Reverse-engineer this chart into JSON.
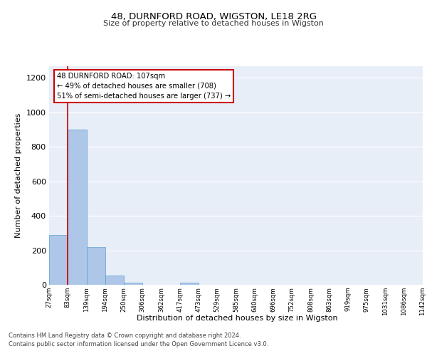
{
  "title1": "48, DURNFORD ROAD, WIGSTON, LE18 2RG",
  "title2": "Size of property relative to detached houses in Wigston",
  "xlabel": "Distribution of detached houses by size in Wigston",
  "ylabel": "Number of detached properties",
  "bin_labels": [
    "27sqm",
    "83sqm",
    "139sqm",
    "194sqm",
    "250sqm",
    "306sqm",
    "362sqm",
    "417sqm",
    "473sqm",
    "529sqm",
    "585sqm",
    "640sqm",
    "696sqm",
    "752sqm",
    "808sqm",
    "863sqm",
    "919sqm",
    "975sqm",
    "1031sqm",
    "1086sqm",
    "1142sqm"
  ],
  "bar_values": [
    290,
    900,
    220,
    55,
    12,
    0,
    0,
    12,
    0,
    0,
    0,
    0,
    0,
    0,
    0,
    0,
    0,
    0,
    0,
    0
  ],
  "bar_color": "#aec6e8",
  "bar_edgecolor": "#5a9fd4",
  "background_color": "#e8eef8",
  "grid_color": "#ffffff",
  "annotation_text": "48 DURNFORD ROAD: 107sqm\n← 49% of detached houses are smaller (708)\n51% of semi-detached houses are larger (737) →",
  "annotation_box_color": "#ffffff",
  "annotation_border_color": "#cc0000",
  "red_line_bar_index": 1,
  "ylim": [
    0,
    1270
  ],
  "yticks": [
    0,
    200,
    400,
    600,
    800,
    1000,
    1200
  ],
  "footnote1": "Contains HM Land Registry data © Crown copyright and database right 2024.",
  "footnote2": "Contains public sector information licensed under the Open Government Licence v3.0.",
  "n_bars": 20
}
